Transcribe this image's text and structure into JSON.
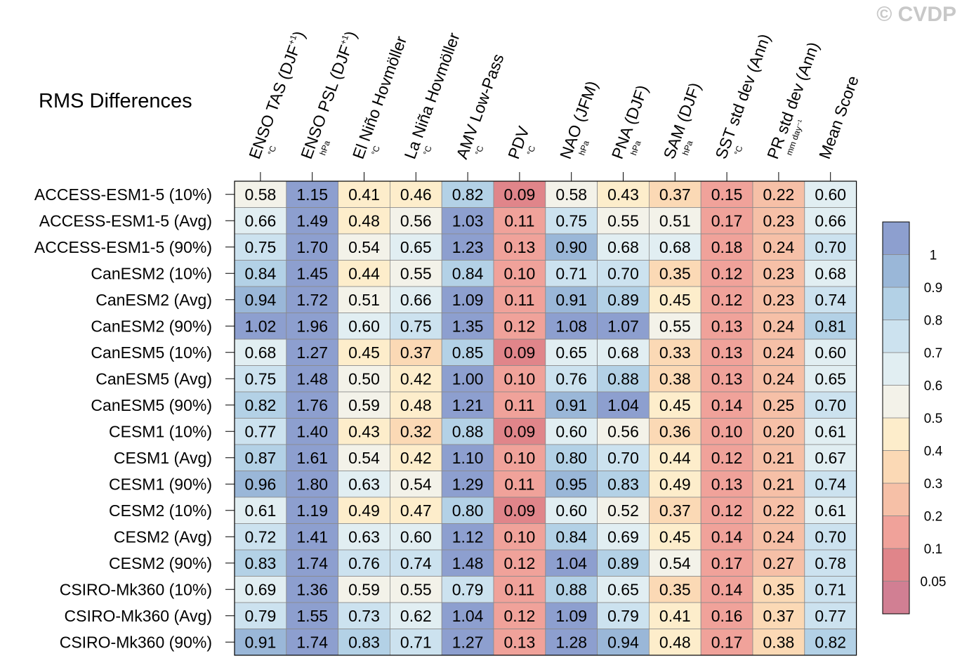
{
  "title": "RMS Differences",
  "watermark": "© CVDP",
  "chart_data": {
    "type": "heatmap",
    "title": "RMS Differences",
    "columns": [
      {
        "label": "ENSO TAS (DJF",
        "sup": "+1",
        "tail": ")",
        "unit": "°C"
      },
      {
        "label": "ENSO PSL (DJF",
        "sup": "+1",
        "tail": ")",
        "unit": "hPa"
      },
      {
        "label": "El Niño Hovmöller",
        "sup": "",
        "tail": "",
        "unit": "°C"
      },
      {
        "label": "La Niña Hovmöller",
        "sup": "",
        "tail": "",
        "unit": "°C"
      },
      {
        "label": "AMV Low-Pass",
        "sup": "",
        "tail": "",
        "unit": "°C"
      },
      {
        "label": "PDV",
        "sup": "",
        "tail": "",
        "unit": "°C"
      },
      {
        "label": "NAO (JFM)",
        "sup": "",
        "tail": "",
        "unit": "hPa"
      },
      {
        "label": "PNA (DJF)",
        "sup": "",
        "tail": "",
        "unit": "hPa"
      },
      {
        "label": "SAM (DJF)",
        "sup": "",
        "tail": "",
        "unit": "hPa"
      },
      {
        "label": "SST std dev (Ann)",
        "sup": "",
        "tail": "",
        "unit": "°C"
      },
      {
        "label": "PR std dev (Ann)",
        "sup": "",
        "tail": "",
        "unit": "mm day⁻¹"
      },
      {
        "label": "Mean Score",
        "sup": "",
        "tail": "",
        "unit": ""
      }
    ],
    "rows": [
      "ACCESS-ESM1-5 (10%)",
      "ACCESS-ESM1-5 (Avg)",
      "ACCESS-ESM1-5 (90%)",
      "CanESM2 (10%)",
      "CanESM2 (Avg)",
      "CanESM2 (90%)",
      "CanESM5 (10%)",
      "CanESM5 (Avg)",
      "CanESM5 (90%)",
      "CESM1 (10%)",
      "CESM1 (Avg)",
      "CESM1 (90%)",
      "CESM2 (10%)",
      "CESM2 (Avg)",
      "CESM2 (90%)",
      "CSIRO-Mk360 (10%)",
      "CSIRO-Mk360 (Avg)",
      "CSIRO-Mk360 (90%)"
    ],
    "values": [
      [
        "0.58",
        "1.15",
        "0.41",
        "0.46",
        "0.82",
        "0.09",
        "0.58",
        "0.43",
        "0.37",
        "0.15",
        "0.22",
        "0.60"
      ],
      [
        "0.66",
        "1.49",
        "0.48",
        "0.56",
        "1.03",
        "0.11",
        "0.75",
        "0.55",
        "0.51",
        "0.17",
        "0.23",
        "0.66"
      ],
      [
        "0.75",
        "1.70",
        "0.54",
        "0.65",
        "1.23",
        "0.13",
        "0.90",
        "0.68",
        "0.68",
        "0.18",
        "0.24",
        "0.70"
      ],
      [
        "0.84",
        "1.45",
        "0.44",
        "0.55",
        "0.84",
        "0.10",
        "0.71",
        "0.70",
        "0.35",
        "0.12",
        "0.23",
        "0.68"
      ],
      [
        "0.94",
        "1.72",
        "0.51",
        "0.66",
        "1.09",
        "0.11",
        "0.91",
        "0.89",
        "0.45",
        "0.12",
        "0.23",
        "0.74"
      ],
      [
        "1.02",
        "1.96",
        "0.60",
        "0.75",
        "1.35",
        "0.12",
        "1.08",
        "1.07",
        "0.55",
        "0.13",
        "0.24",
        "0.81"
      ],
      [
        "0.68",
        "1.27",
        "0.45",
        "0.37",
        "0.85",
        "0.09",
        "0.65",
        "0.68",
        "0.33",
        "0.13",
        "0.24",
        "0.60"
      ],
      [
        "0.75",
        "1.48",
        "0.50",
        "0.42",
        "1.00",
        "0.10",
        "0.76",
        "0.88",
        "0.38",
        "0.13",
        "0.24",
        "0.65"
      ],
      [
        "0.82",
        "1.76",
        "0.59",
        "0.48",
        "1.21",
        "0.11",
        "0.91",
        "1.04",
        "0.45",
        "0.14",
        "0.25",
        "0.70"
      ],
      [
        "0.77",
        "1.40",
        "0.43",
        "0.32",
        "0.88",
        "0.09",
        "0.60",
        "0.56",
        "0.36",
        "0.10",
        "0.20",
        "0.61"
      ],
      [
        "0.87",
        "1.61",
        "0.54",
        "0.42",
        "1.10",
        "0.10",
        "0.80",
        "0.70",
        "0.44",
        "0.12",
        "0.21",
        "0.67"
      ],
      [
        "0.96",
        "1.80",
        "0.63",
        "0.54",
        "1.29",
        "0.11",
        "0.95",
        "0.83",
        "0.49",
        "0.13",
        "0.21",
        "0.74"
      ],
      [
        "0.61",
        "1.19",
        "0.49",
        "0.47",
        "0.80",
        "0.09",
        "0.60",
        "0.52",
        "0.37",
        "0.12",
        "0.22",
        "0.61"
      ],
      [
        "0.72",
        "1.41",
        "0.63",
        "0.60",
        "1.12",
        "0.10",
        "0.84",
        "0.69",
        "0.45",
        "0.14",
        "0.24",
        "0.70"
      ],
      [
        "0.83",
        "1.74",
        "0.76",
        "0.74",
        "1.48",
        "0.12",
        "1.04",
        "0.89",
        "0.54",
        "0.17",
        "0.27",
        "0.78"
      ],
      [
        "0.69",
        "1.36",
        "0.59",
        "0.55",
        "0.79",
        "0.11",
        "0.88",
        "0.65",
        "0.35",
        "0.14",
        "0.35",
        "0.71"
      ],
      [
        "0.79",
        "1.55",
        "0.73",
        "0.62",
        "1.04",
        "0.12",
        "1.09",
        "0.79",
        "0.41",
        "0.16",
        "0.37",
        "0.77"
      ],
      [
        "0.91",
        "1.74",
        "0.83",
        "0.71",
        "1.27",
        "0.13",
        "1.28",
        "0.94",
        "0.48",
        "0.17",
        "0.38",
        "0.82"
      ]
    ],
    "colorbar": {
      "levels": [
        0.05,
        0.1,
        0.2,
        0.3,
        0.4,
        0.5,
        0.6,
        0.7,
        0.8,
        0.9,
        1
      ],
      "tick_labels": [
        "0.05",
        "0.1",
        "0.2",
        "0.3",
        "0.4",
        "0.5",
        "0.6",
        "0.7",
        "0.8",
        "0.9",
        "1"
      ],
      "colors": [
        "#d17f93",
        "#e0858a",
        "#f0a29a",
        "#f6c0a7",
        "#fbd9b5",
        "#fdedcb",
        "#f3f2e9",
        "#e1eef2",
        "#cce2ef",
        "#b3d1e6",
        "#9ab7d8",
        "#8d9fcf"
      ]
    },
    "grid": true,
    "legend_position": "right"
  }
}
